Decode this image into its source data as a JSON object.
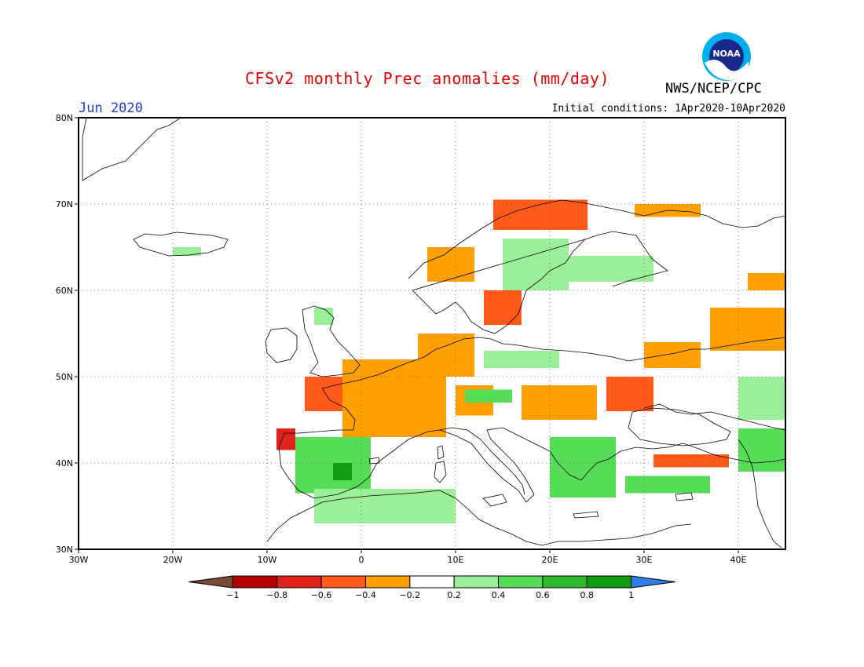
{
  "header": {
    "title": "CFSv2 monthly Prec anomalies (mm/day)",
    "agency": "NWS/NCEP/CPC",
    "month": "Jun 2020",
    "initial_conditions": "Initial conditions: 1Apr2020-10Apr2020",
    "logo_text": "NOAA"
  },
  "map": {
    "lon_range": [
      -30,
      45
    ],
    "lat_range": [
      30,
      80
    ],
    "lon_ticks": [
      {
        "v": -30,
        "label": "30W"
      },
      {
        "v": -20,
        "label": "20W"
      },
      {
        "v": -10,
        "label": "10W"
      },
      {
        "v": 0,
        "label": "0"
      },
      {
        "v": 10,
        "label": "10E"
      },
      {
        "v": 20,
        "label": "20E"
      },
      {
        "v": 30,
        "label": "30E"
      },
      {
        "v": 40,
        "label": "40E"
      }
    ],
    "lat_ticks": [
      {
        "v": 80,
        "label": "80N"
      },
      {
        "v": 70,
        "label": "70N"
      },
      {
        "v": 60,
        "label": "60N"
      },
      {
        "v": 50,
        "label": "50N"
      },
      {
        "v": 40,
        "label": "40N"
      },
      {
        "v": 30,
        "label": "30N"
      }
    ],
    "grid": "dotted"
  },
  "colorbar": {
    "colors": [
      "#7a4a32",
      "#b30000",
      "#e0231a",
      "#ff5a1a",
      "#ffa000",
      "#ffffff",
      "#9bef9b",
      "#57dc57",
      "#2eb82e",
      "#129b12",
      "#2f7fe6"
    ],
    "labels": [
      "-1",
      "-0.8",
      "-0.6",
      "-0.4",
      "-0.2",
      "0.2",
      "0.4",
      "0.6",
      "0.8",
      "1"
    ]
  },
  "chart_data": {
    "type": "heatmap",
    "title": "CFSv2 monthly Prec anomalies (mm/day)",
    "units": "mm/day",
    "levels": [
      -1,
      -0.8,
      -0.6,
      -0.4,
      -0.2,
      0.2,
      0.4,
      0.6,
      0.8,
      1
    ],
    "anomaly_regions": [
      {
        "lon": [
          -6,
          5
        ],
        "lat": [
          46,
          50
        ],
        "value": -0.5
      },
      {
        "lon": [
          0,
          5
        ],
        "lat": [
          43.5,
          47
        ],
        "value": -0.7
      },
      {
        "lon": [
          -2,
          9
        ],
        "lat": [
          43,
          52
        ],
        "value": -0.3
      },
      {
        "lon": [
          6,
          12
        ],
        "lat": [
          50,
          55
        ],
        "value": -0.3
      },
      {
        "lon": [
          10,
          14
        ],
        "lat": [
          45.5,
          49
        ],
        "value": -0.3
      },
      {
        "lon": [
          17,
          25
        ],
        "lat": [
          45,
          49
        ],
        "value": -0.3
      },
      {
        "lon": [
          26,
          31
        ],
        "lat": [
          46,
          50
        ],
        "value": -0.5
      },
      {
        "lon": [
          30,
          36
        ],
        "lat": [
          51,
          54
        ],
        "value": -0.3
      },
      {
        "lon": [
          37,
          45
        ],
        "lat": [
          53,
          58
        ],
        "value": -0.3
      },
      {
        "lon": [
          41,
          45
        ],
        "lat": [
          60,
          62
        ],
        "value": -0.3
      },
      {
        "lon": [
          13,
          17
        ],
        "lat": [
          56,
          60
        ],
        "value": -0.5
      },
      {
        "lon": [
          7,
          12
        ],
        "lat": [
          61,
          65
        ],
        "value": -0.3
      },
      {
        "lon": [
          14,
          24
        ],
        "lat": [
          67,
          70.5
        ],
        "value": -0.5
      },
      {
        "lon": [
          29,
          36
        ],
        "lat": [
          68.5,
          70
        ],
        "value": -0.3
      },
      {
        "lon": [
          -9,
          -7
        ],
        "lat": [
          41.5,
          44
        ],
        "value": -0.7
      },
      {
        "lon": [
          31,
          39
        ],
        "lat": [
          39.5,
          41
        ],
        "value": -0.5
      },
      {
        "lon": [
          -7,
          1
        ],
        "lat": [
          36.5,
          43
        ],
        "value": 0.5
      },
      {
        "lon": [
          -3,
          -1
        ],
        "lat": [
          38,
          40
        ],
        "value": 0.9
      },
      {
        "lon": [
          -5,
          10
        ],
        "lat": [
          33,
          37
        ],
        "value": 0.4
      },
      {
        "lon": [
          20,
          27
        ],
        "lat": [
          36,
          43
        ],
        "value": 0.6
      },
      {
        "lon": [
          28,
          37
        ],
        "lat": [
          36.5,
          38.5
        ],
        "value": 0.6
      },
      {
        "lon": [
          40,
          45
        ],
        "lat": [
          39,
          44
        ],
        "value": 0.5
      },
      {
        "lon": [
          15,
          22
        ],
        "lat": [
          60,
          66
        ],
        "value": 0.3
      },
      {
        "lon": [
          22,
          31
        ],
        "lat": [
          61,
          64
        ],
        "value": 0.4
      },
      {
        "lon": [
          13,
          21
        ],
        "lat": [
          51,
          53
        ],
        "value": 0.4
      },
      {
        "lon": [
          11,
          16
        ],
        "lat": [
          47,
          48.5
        ],
        "value": 0.6
      },
      {
        "lon": [
          -5,
          -3
        ],
        "lat": [
          56,
          58
        ],
        "value": 0.4
      },
      {
        "lon": [
          -20,
          -17
        ],
        "lat": [
          64,
          65
        ],
        "value": 0.4
      },
      {
        "lon": [
          40,
          45
        ],
        "lat": [
          45,
          50
        ],
        "value": 0.3
      }
    ]
  }
}
